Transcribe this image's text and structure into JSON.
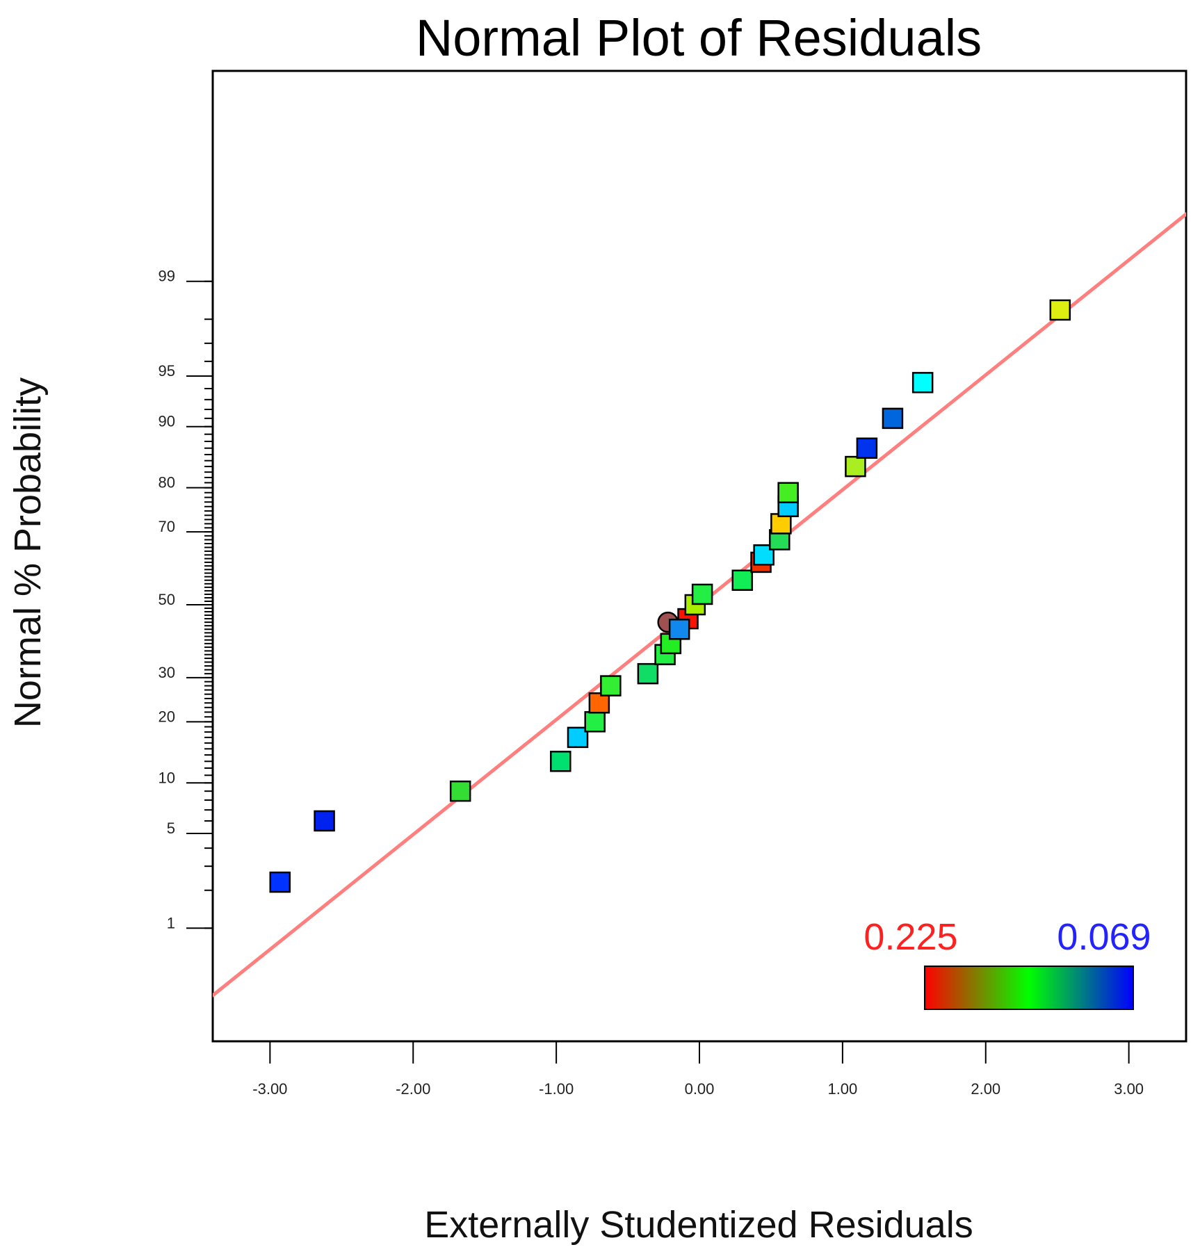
{
  "chart_data": {
    "type": "scatter",
    "title": "Normal Plot of Residuals",
    "xlabel": "Externally Studentized Residuals",
    "ylabel": "Normal % Probability",
    "xlim": [
      -3.4,
      3.4
    ],
    "x_ticks": [
      -3.0,
      -2.0,
      -1.0,
      0.0,
      1.0,
      2.0,
      3.0
    ],
    "x_tick_labels": [
      "-3.00",
      "-2.00",
      "-1.00",
      "0.00",
      "1.00",
      "2.00",
      "3.00"
    ],
    "y_scale": "normal-probability",
    "y_ticks": [
      1,
      5,
      10,
      20,
      30,
      50,
      70,
      80,
      90,
      95,
      99
    ],
    "y_tick_labels": [
      "1",
      "5",
      "10",
      "20",
      "30",
      "50",
      "70",
      "80",
      "90",
      "95",
      "99"
    ],
    "reference_line": {
      "color": "#ff7f7f",
      "x": [
        -3.4,
        3.4
      ],
      "probability_z": [
        -2.81,
        2.81
      ]
    },
    "color_scale": {
      "min_label": "0.225",
      "max_label": "0.069",
      "min_color": "#ff2020",
      "max_color": "#2323ff",
      "stops": [
        "#ff0000",
        "#00ff00",
        "#0000ff"
      ]
    },
    "points": [
      {
        "x": -2.93,
        "p": 2.3,
        "color": "#0033ff"
      },
      {
        "x": -2.62,
        "p": 6.0,
        "color": "#0022ee"
      },
      {
        "x": -1.67,
        "p": 9.0,
        "color": "#33dd33"
      },
      {
        "x": -0.97,
        "p": 13.0,
        "color": "#00e070"
      },
      {
        "x": -0.85,
        "p": 17.0,
        "color": "#00ccff"
      },
      {
        "x": -0.73,
        "p": 20.0,
        "color": "#22ee44"
      },
      {
        "x": -0.7,
        "p": 24.0,
        "color": "#ff6600"
      },
      {
        "x": -0.62,
        "p": 28.0,
        "color": "#33ee33"
      },
      {
        "x": -0.36,
        "p": 31.0,
        "color": "#11dd66"
      },
      {
        "x": -0.24,
        "p": 36.0,
        "color": "#22ee44"
      },
      {
        "x": -0.2,
        "p": 39.0,
        "color": "#22ee22"
      },
      {
        "x": -0.22,
        "p": 45.0,
        "color": "#a05050",
        "shape": "circle"
      },
      {
        "x": -0.08,
        "p": 46.0,
        "color": "#ff1100"
      },
      {
        "x": -0.14,
        "p": 43.0,
        "color": "#1188ee"
      },
      {
        "x": -0.03,
        "p": 50.0,
        "color": "#aaee00"
      },
      {
        "x": 0.02,
        "p": 53.0,
        "color": "#22ee44"
      },
      {
        "x": 0.3,
        "p": 57.0,
        "color": "#11ee55"
      },
      {
        "x": 0.43,
        "p": 62.0,
        "color": "#ee3300"
      },
      {
        "x": 0.45,
        "p": 64.0,
        "color": "#00ddff"
      },
      {
        "x": 0.56,
        "p": 68.0,
        "color": "#22dd55"
      },
      {
        "x": 0.57,
        "p": 72.0,
        "color": "#ffcc00"
      },
      {
        "x": 0.62,
        "p": 76.0,
        "color": "#00ccff"
      },
      {
        "x": 0.62,
        "p": 79.0,
        "color": "#44ee22"
      },
      {
        "x": 1.09,
        "p": 84.0,
        "color": "#aaee22"
      },
      {
        "x": 1.17,
        "p": 87.0,
        "color": "#0033ee"
      },
      {
        "x": 1.35,
        "p": 91.0,
        "color": "#0066dd"
      },
      {
        "x": 1.56,
        "p": 94.5,
        "color": "#00ffff"
      },
      {
        "x": 2.52,
        "p": 98.3,
        "color": "#ddee11"
      }
    ]
  }
}
